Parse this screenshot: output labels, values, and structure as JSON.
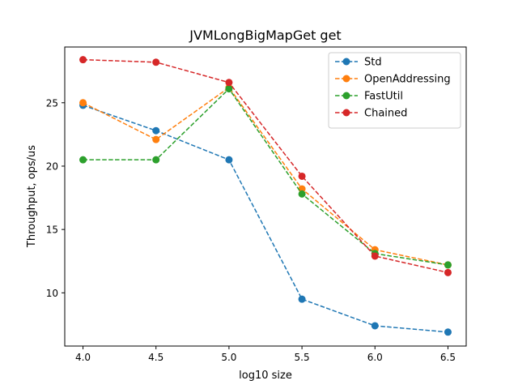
{
  "chart_data": {
    "type": "line",
    "title": "JVMLongBigMapGet get",
    "xlabel": "log10 size",
    "ylabel": "Throughput, ops/us",
    "x": [
      4.0,
      4.5,
      5.0,
      5.5,
      6.0,
      6.5
    ],
    "x_ticks": [
      "4.0",
      "4.5",
      "5.0",
      "5.5",
      "6.0",
      "6.5"
    ],
    "y_ticks": [
      "10",
      "15",
      "20",
      "25"
    ],
    "xlim": [
      3.875,
      6.625
    ],
    "ylim": [
      5.8,
      29.4
    ],
    "legend_position": "top-right",
    "grid": false,
    "series": [
      {
        "name": "Std",
        "color": "#1f77b4",
        "values": [
          24.8,
          22.8,
          20.5,
          9.5,
          7.4,
          6.9
        ]
      },
      {
        "name": "OpenAddressing",
        "color": "#ff7f0e",
        "values": [
          25.0,
          22.1,
          26.2,
          18.2,
          13.4,
          12.2
        ]
      },
      {
        "name": "FastUtil",
        "color": "#2ca02c",
        "values": [
          20.5,
          20.5,
          26.1,
          17.8,
          13.1,
          12.2
        ]
      },
      {
        "name": "Chained",
        "color": "#d62728",
        "values": [
          28.4,
          28.2,
          26.6,
          19.2,
          12.9,
          11.6
        ]
      }
    ]
  }
}
